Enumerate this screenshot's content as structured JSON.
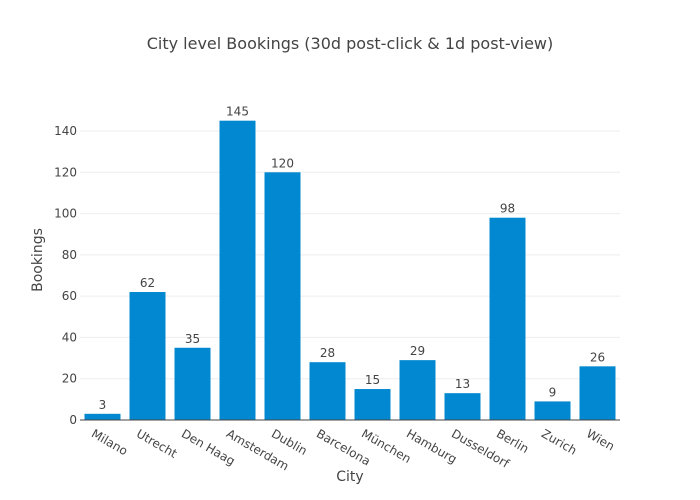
{
  "chart_data": {
    "type": "bar",
    "title": "City level Bookings (30d post-click & 1d post-view)",
    "xlabel": "City",
    "ylabel": "Bookings",
    "categories": [
      "Milano",
      "Utrecht",
      "Den Haag",
      "Amsterdam",
      "Dublin",
      "Barcelona",
      "München",
      "Hamburg",
      "Dusseldorf",
      "Berlin",
      "Zurich",
      "Wien"
    ],
    "values": [
      3,
      62,
      35,
      145,
      120,
      28,
      15,
      29,
      13,
      98,
      9,
      26
    ],
    "data_labels": [
      "3",
      "62",
      "35",
      "145",
      "120",
      "28",
      "15",
      "29",
      "13",
      "98",
      "9",
      "26"
    ],
    "y_ticks": [
      0,
      20,
      40,
      60,
      80,
      100,
      120,
      140
    ],
    "y_tick_labels": [
      "0",
      "20",
      "40",
      "60",
      "80",
      "100",
      "120",
      "140"
    ],
    "ylim": [
      0,
      152.6
    ],
    "grid": true,
    "legend": "none",
    "bar_color": "#0288d1",
    "grid_color": "#eeeeee",
    "text_color": "#444444"
  }
}
